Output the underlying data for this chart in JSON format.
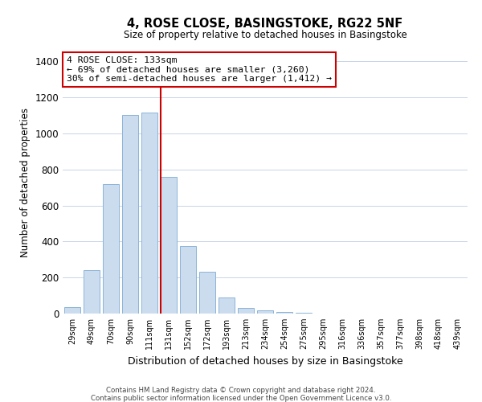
{
  "title": "4, ROSE CLOSE, BASINGSTOKE, RG22 5NF",
  "subtitle": "Size of property relative to detached houses in Basingstoke",
  "xlabel": "Distribution of detached houses by size in Basingstoke",
  "ylabel": "Number of detached properties",
  "bar_labels": [
    "29sqm",
    "49sqm",
    "70sqm",
    "90sqm",
    "111sqm",
    "131sqm",
    "152sqm",
    "172sqm",
    "193sqm",
    "213sqm",
    "234sqm",
    "254sqm",
    "275sqm",
    "295sqm",
    "316sqm",
    "336sqm",
    "357sqm",
    "377sqm",
    "398sqm",
    "418sqm",
    "439sqm"
  ],
  "bar_values": [
    35,
    240,
    720,
    1100,
    1115,
    760,
    375,
    230,
    90,
    30,
    18,
    10,
    5,
    0,
    0,
    0,
    0,
    0,
    0,
    0,
    0
  ],
  "bar_color": "#ccdcef",
  "bar_edge_color": "#8bb4d8",
  "highlight_index": 5,
  "highlight_line_color": "#cc0000",
  "ylim": [
    0,
    1450
  ],
  "yticks": [
    0,
    200,
    400,
    600,
    800,
    1000,
    1200,
    1400
  ],
  "annotation_title": "4 ROSE CLOSE: 133sqm",
  "annotation_line1": "← 69% of detached houses are smaller (3,260)",
  "annotation_line2": "30% of semi-detached houses are larger (1,412) →",
  "annotation_box_color": "#ffffff",
  "annotation_box_edge_color": "#cc0000",
  "footer1": "Contains HM Land Registry data © Crown copyright and database right 2024.",
  "footer2": "Contains public sector information licensed under the Open Government Licence v3.0.",
  "bg_color": "#ffffff",
  "grid_color": "#c8d4e8"
}
